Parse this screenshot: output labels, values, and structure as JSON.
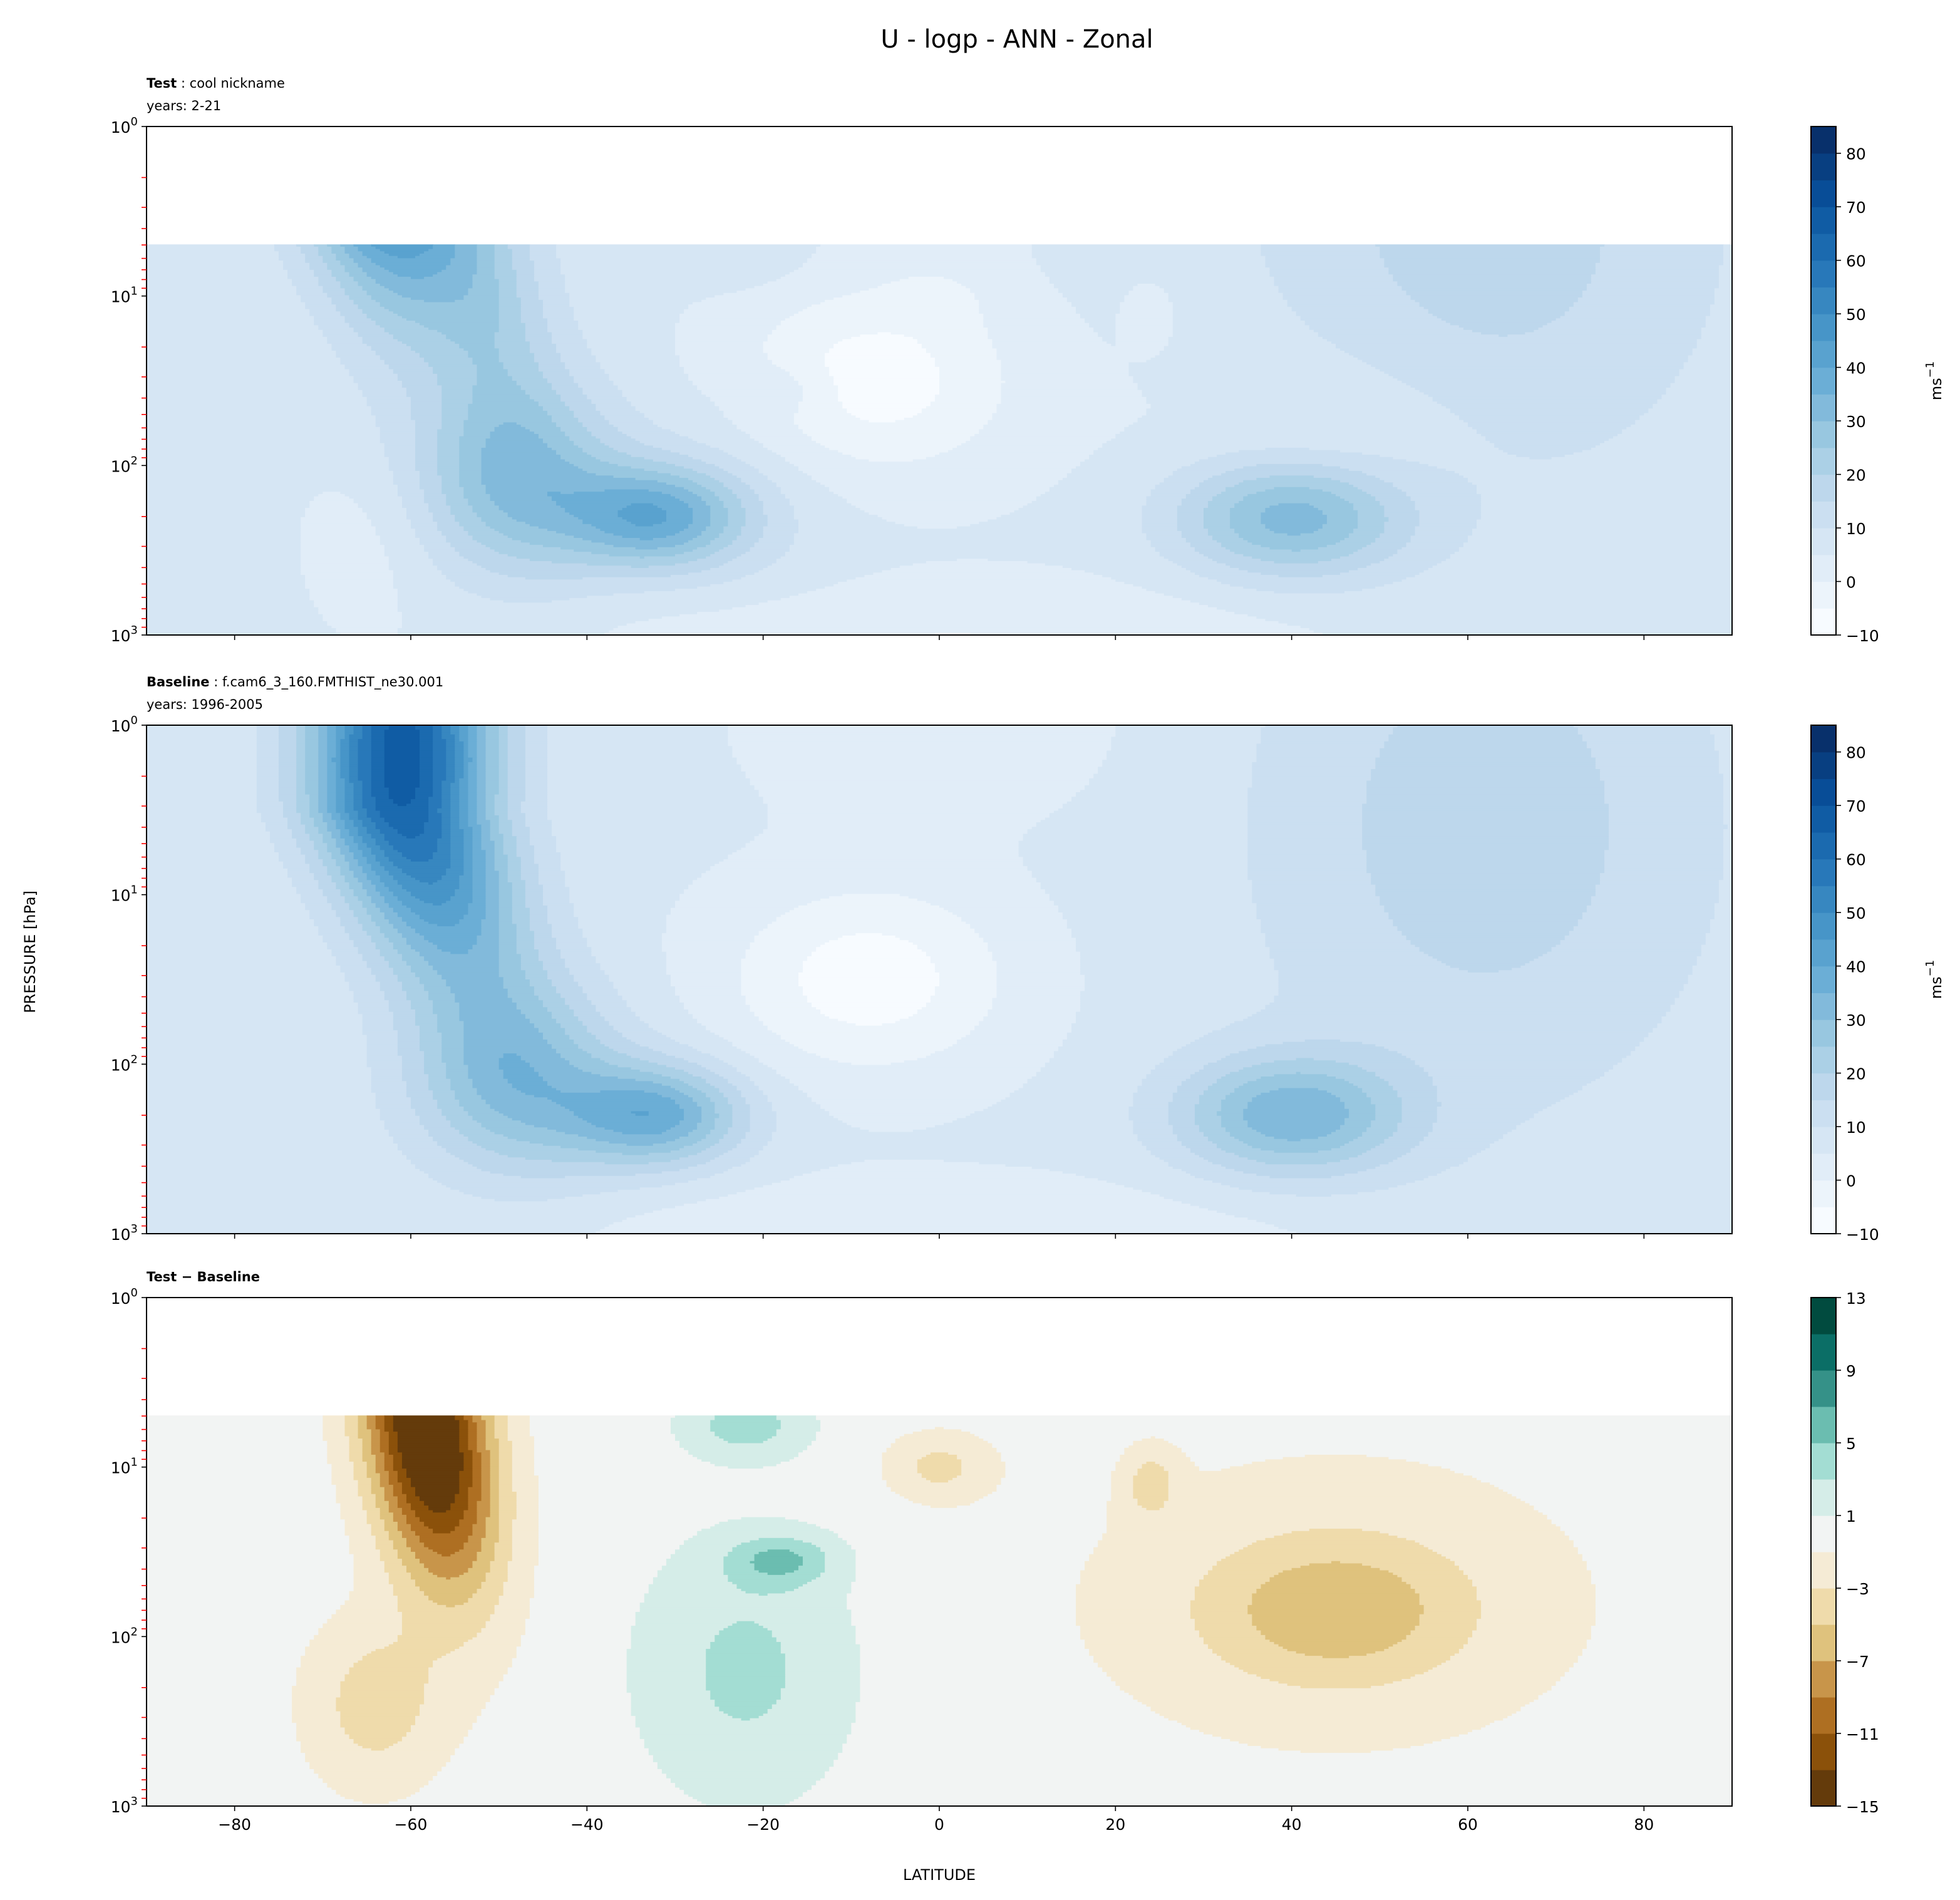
{
  "chart_data": {
    "type": "heatmap",
    "title": "U - logp - ANN - Zonal",
    "xlabel": "LATITUDE",
    "ylabel": "PRESSURE [hPa]",
    "xlim": [
      -90,
      90
    ],
    "ylim_hpa": [
      1000,
      1
    ],
    "yscale": "log",
    "xticks": [
      -80,
      -60,
      -40,
      -20,
      0,
      20,
      40,
      60,
      80
    ],
    "xtick_labels": [
      "−80",
      "−60",
      "−40",
      "−20",
      "0",
      "20",
      "40",
      "60",
      "80"
    ],
    "yticks": [
      {
        "base": "10",
        "exp": "0"
      },
      {
        "base": "10",
        "exp": "1"
      },
      {
        "base": "10",
        "exp": "2"
      },
      {
        "base": "10",
        "exp": "3"
      }
    ],
    "minor_tick_color": "#ff0000",
    "units": {
      "base": "ms",
      "exp": "−1"
    },
    "panels": [
      {
        "id": "test",
        "label_bold": "Test",
        "label_rest": " : cool nickname",
        "years": "years: 2-21",
        "top_hpa_with_data": 5,
        "field": "baseline+diff",
        "colorbar": "blues"
      },
      {
        "id": "baseline",
        "label_bold": "Baseline",
        "label_rest": " : f.cam6_3_160.FMTHIST_ne30.001",
        "years": "years: 1996-2005",
        "top_hpa_with_data": 1,
        "field": "baseline",
        "colorbar": "blues"
      },
      {
        "id": "diff",
        "label_bold": "Test − Baseline",
        "label_rest": "",
        "years": "",
        "top_hpa_with_data": 5,
        "field": "diff",
        "colorbar": "brbg"
      }
    ],
    "colorbars": {
      "blues": {
        "min": -10,
        "max": 85,
        "step": 5,
        "ticks": [
          -10,
          0,
          10,
          20,
          30,
          40,
          50,
          60,
          70,
          80
        ],
        "tick_labels": [
          "−10",
          "0",
          "10",
          "20",
          "30",
          "40",
          "50",
          "60",
          "70",
          "80"
        ],
        "anchors": [
          "#f7fbff",
          "#deebf7",
          "#c6dbef",
          "#9ecae1",
          "#6baed6",
          "#4292c6",
          "#2171b5",
          "#08519c",
          "#08306b"
        ]
      },
      "brbg": {
        "min": -15,
        "max": 13,
        "step": 2,
        "ticks": [
          -15,
          -11,
          -7,
          -3,
          1,
          5,
          9,
          13
        ],
        "tick_labels": [
          "−15",
          "−11",
          "−7",
          "−3",
          "1",
          "5",
          "9",
          "13"
        ],
        "colors": [
          "#643b0b",
          "#8b510a",
          "#ae6f22",
          "#c8954a",
          "#dfc27d",
          "#efdbab",
          "#f5ebd5",
          "#f2f4f3",
          "#d5ede8",
          "#a3ddd3",
          "#6bbdb0",
          "#359188",
          "#0b6e66",
          "#014b3f"
        ]
      }
    },
    "baseline_field": {
      "background": 6,
      "blobs": [
        {
          "amp": 62,
          "lat": -61,
          "lat_width": 10,
          "log10p": 0.2,
          "log10p_width": 1.25,
          "lat_tilt": 7
        },
        {
          "amp": 22,
          "lat": -48,
          "lat_width": 12,
          "log10p": 2.1,
          "log10p_width": 0.55,
          "lat_tilt": 0
        },
        {
          "amp": 30,
          "lat": -32,
          "lat_width": 10,
          "log10p": 2.3,
          "log10p_width": 0.3,
          "lat_tilt": 0
        },
        {
          "amp": 27,
          "lat": 40,
          "lat_width": 13,
          "log10p": 2.3,
          "log10p_width": 0.35,
          "lat_tilt": 0
        },
        {
          "amp": 12,
          "lat": 62,
          "lat_width": 26,
          "log10p": 0.6,
          "log10p_width": 1.6,
          "lat_tilt": 0
        },
        {
          "amp": -14,
          "lat": -8,
          "lat_width": 16,
          "log10p": 1.5,
          "log10p_width": 0.55,
          "lat_tilt": 0
        },
        {
          "amp": -6,
          "lat": 0,
          "lat_width": 18,
          "log10p": 0.0,
          "log10p_width": 0.5,
          "lat_tilt": 0
        },
        {
          "amp": -6,
          "lat": 0,
          "lat_width": 40,
          "log10p": 3.0,
          "log10p_width": 0.3,
          "lat_tilt": 0
        }
      ]
    },
    "diff_field": {
      "background": 0,
      "blobs": [
        {
          "amp": -17,
          "lat": -59,
          "lat_width": 7,
          "log10p": 0.8,
          "log10p_width": 0.9,
          "lat_tilt": 3
        },
        {
          "amp": -4,
          "lat": -64,
          "lat_width": 8,
          "log10p": 2.4,
          "log10p_width": 0.5,
          "lat_tilt": 0
        },
        {
          "amp": 3.5,
          "lat": -22,
          "lat_width": 12,
          "log10p": 2.2,
          "log10p_width": 0.75,
          "lat_tilt": 0
        },
        {
          "amp": 4.5,
          "lat": -18,
          "lat_width": 6,
          "log10p": 1.55,
          "log10p_width": 0.15,
          "lat_tilt": 0
        },
        {
          "amp": 4,
          "lat": -22,
          "lat_width": 7,
          "log10p": 0.75,
          "log10p_width": 0.2,
          "lat_tilt": 0
        },
        {
          "amp": -4.5,
          "lat": 45,
          "lat_width": 14,
          "log10p": 1.85,
          "log10p_width": 0.4,
          "lat_tilt": 0
        },
        {
          "amp": -2.5,
          "lat": 45,
          "lat_width": 30,
          "log10p": 1.8,
          "log10p_width": 0.9,
          "lat_tilt": 0
        },
        {
          "amp": -3.5,
          "lat": 0,
          "lat_width": 6,
          "log10p": 1.0,
          "log10p_width": 0.2,
          "lat_tilt": 0
        },
        {
          "amp": -3.5,
          "lat": 24,
          "lat_width": 3,
          "log10p": 1.1,
          "log10p_width": 0.2,
          "lat_tilt": 0
        }
      ]
    }
  }
}
